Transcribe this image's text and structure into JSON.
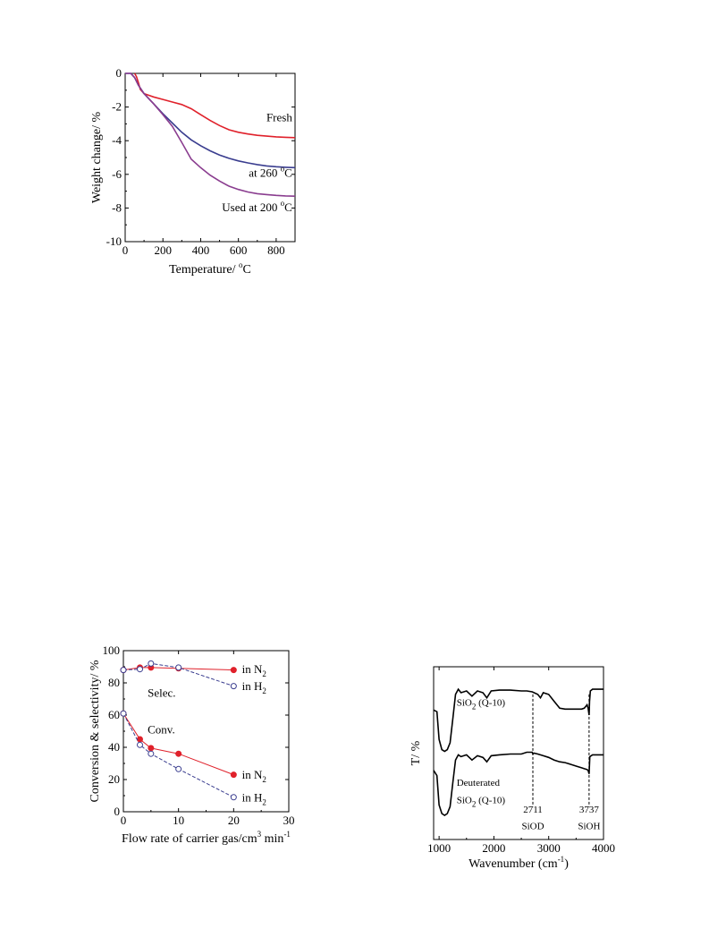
{
  "chart_data": [
    {
      "type": "line",
      "xlabel_main": "Temperature/ ",
      "xlabel_sup": "o",
      "xlabel_tail": "C",
      "ylabel": "Weight change/ %",
      "xlim": [
        0,
        900
      ],
      "ylim": [
        -10,
        0
      ],
      "xticks": [
        0,
        200,
        400,
        600,
        800
      ],
      "yticks": [
        0,
        -2,
        -4,
        -6,
        -8,
        -10
      ],
      "grid": false,
      "series": [
        {
          "color": "#e0212b",
          "x": [
            50,
            60,
            70,
            80,
            100,
            150,
            200,
            250,
            300,
            350,
            400,
            450,
            500,
            550,
            600,
            650,
            700,
            750,
            800,
            850,
            900
          ],
          "y": [
            0,
            -0.2,
            -0.55,
            -0.95,
            -1.2,
            -1.4,
            -1.55,
            -1.7,
            -1.85,
            -2.1,
            -2.45,
            -2.8,
            -3.1,
            -3.35,
            -3.5,
            -3.6,
            -3.68,
            -3.73,
            -3.77,
            -3.8,
            -3.82
          ]
        },
        {
          "color": "#3a3d8f",
          "x": [
            0,
            30,
            50,
            70,
            100,
            150,
            200,
            250,
            300,
            350,
            400,
            450,
            500,
            550,
            600,
            650,
            700,
            750,
            800,
            850,
            900
          ],
          "y": [
            0,
            0,
            -0.25,
            -0.7,
            -1.2,
            -1.8,
            -2.4,
            -2.95,
            -3.5,
            -3.95,
            -4.3,
            -4.6,
            -4.85,
            -5.05,
            -5.2,
            -5.32,
            -5.42,
            -5.5,
            -5.55,
            -5.58,
            -5.6
          ]
        },
        {
          "color": "#8a3d8f",
          "x": [
            0,
            30,
            50,
            70,
            100,
            150,
            200,
            250,
            300,
            350,
            400,
            450,
            500,
            550,
            600,
            650,
            700,
            750,
            800,
            850,
            900
          ],
          "y": [
            0,
            0,
            -0.25,
            -0.7,
            -1.2,
            -1.8,
            -2.45,
            -3.15,
            -4.1,
            -5.1,
            -5.6,
            -6.05,
            -6.4,
            -6.7,
            -6.9,
            -7.05,
            -7.15,
            -7.2,
            -7.25,
            -7.28,
            -7.3
          ]
        }
      ],
      "annotations": [
        {
          "text": "Fresh",
          "x": 885,
          "y": -2.85,
          "anchor": "end",
          "color": "#000000"
        },
        {
          "text": "at 260 ",
          "sup": "o",
          "tail": "C",
          "x": 885,
          "y": -6.15,
          "anchor": "end",
          "color": "#3a3d8f"
        },
        {
          "text": "Used at 200 ",
          "sup": "o",
          "tail": "C",
          "x": 885,
          "y": -8.2,
          "anchor": "end",
          "color": "#8a3d8f"
        }
      ]
    },
    {
      "type": "line",
      "xlabel_main": "Flow rate of carrier gas/cm",
      "xlabel_sup": "3",
      "xlabel_tail": " min",
      "xlabel_sup2": "-1",
      "ylabel": "Conversion & selectivity/ %",
      "xlim": [
        0,
        30
      ],
      "ylim": [
        0,
        100
      ],
      "xticks": [
        0,
        10,
        20,
        30
      ],
      "yticks": [
        0,
        20,
        40,
        60,
        80,
        100
      ],
      "grid": false,
      "series": [
        {
          "color": "#e0212b",
          "style": "filled",
          "dash": false,
          "x": [
            0,
            3,
            5,
            10,
            20
          ],
          "y": [
            88,
            89.5,
            89.5,
            89,
            88
          ]
        },
        {
          "color": "#3a3d8f",
          "style": "open",
          "dash": true,
          "x": [
            0,
            3,
            5,
            10,
            20
          ],
          "y": [
            88,
            88.5,
            92,
            89.5,
            78
          ]
        },
        {
          "color": "#e0212b",
          "style": "filled",
          "dash": false,
          "x": [
            0,
            3,
            5,
            10,
            20
          ],
          "y": [
            61,
            45,
            39.5,
            36,
            23
          ]
        },
        {
          "color": "#3a3d8f",
          "style": "open",
          "dash": true,
          "x": [
            0,
            3,
            5,
            10,
            20
          ],
          "y": [
            61,
            41.5,
            36,
            26.5,
            9
          ]
        }
      ],
      "annotations": [
        {
          "text": "Selec.",
          "x": 4.4,
          "y": 71.5,
          "anchor": "start",
          "color": "#000000"
        },
        {
          "text": "Conv.",
          "x": 4.4,
          "y": 48.5,
          "anchor": "start",
          "color": "#000000"
        },
        {
          "text": "in N",
          "sub": "2",
          "x": 21.5,
          "y": 86,
          "anchor": "start",
          "color": "#e0212b"
        },
        {
          "text": "in H",
          "sub": "2",
          "x": 21.5,
          "y": 75.5,
          "anchor": "start",
          "color": "#3a3d8f"
        },
        {
          "text": "in N",
          "sub": "2",
          "x": 21.5,
          "y": 20.5,
          "anchor": "start",
          "color": "#e0212b"
        },
        {
          "text": "in H",
          "sub": "2",
          "x": 21.5,
          "y": 6.5,
          "anchor": "start",
          "color": "#3a3d8f"
        }
      ]
    },
    {
      "type": "line",
      "xlabel_main": "Wavenumber (cm",
      "xlabel_sup": "-1",
      "xlabel_tail": ")",
      "ylabel": "T/ %",
      "xlim": [
        900,
        4000
      ],
      "xticks": [
        1000,
        2000,
        3000,
        4000
      ],
      "ylim": [
        0,
        100
      ],
      "grid": false,
      "series": [
        {
          "color": "#000000",
          "x": [
            900,
            960,
            1000,
            1050,
            1100,
            1150,
            1200,
            1250,
            1300,
            1350,
            1400,
            1500,
            1600,
            1700,
            1800,
            1870,
            1950,
            2100,
            2300,
            2500,
            2600,
            2700,
            2800,
            2850,
            2900,
            3000,
            3100,
            3200,
            3300,
            3400,
            3500,
            3600,
            3650,
            3700,
            3720,
            3737,
            3745,
            3760,
            3800,
            3850,
            4000
          ],
          "y": [
            75,
            74,
            58,
            52,
            51,
            52,
            56,
            70,
            84,
            87,
            85,
            86,
            83,
            86,
            85,
            82,
            86,
            86.5,
            86.5,
            86,
            86,
            85.5,
            84,
            82,
            85,
            84,
            80,
            76,
            75.5,
            75.5,
            75.5,
            75.5,
            76,
            78,
            76,
            72,
            80,
            86,
            87,
            87,
            87
          ]
        },
        {
          "color": "#000000",
          "x": [
            900,
            960,
            1000,
            1050,
            1100,
            1150,
            1200,
            1250,
            1300,
            1350,
            1400,
            1500,
            1600,
            1700,
            1800,
            1870,
            1950,
            2100,
            2300,
            2500,
            2600,
            2700,
            2711,
            2730,
            2800,
            2900,
            3000,
            3100,
            3200,
            3300,
            3400,
            3500,
            3600,
            3650,
            3700,
            3720,
            3737,
            3750,
            3800,
            3850,
            4000
          ],
          "y": [
            40,
            37,
            20,
            15,
            14,
            15,
            19,
            33,
            46,
            49,
            48,
            49,
            46,
            48.5,
            47.5,
            45,
            48.5,
            49,
            49.5,
            49.5,
            50.5,
            50.5,
            49.5,
            50,
            49.5,
            48.5,
            47.5,
            46,
            45,
            44.5,
            43.5,
            42.5,
            41.5,
            41,
            40.5,
            40,
            38,
            48,
            49,
            49,
            49
          ]
        }
      ],
      "vlines": [
        2711,
        3737
      ],
      "annotations": [
        {
          "text": "SiO",
          "sub": "2",
          "tail": " (Q-10)",
          "x": 1320,
          "y": 77.5,
          "anchor": "start",
          "color": "#000000"
        },
        {
          "text": "Deuterated",
          "x": 1320,
          "y": 31,
          "anchor": "start",
          "color": "#000000"
        },
        {
          "text": "SiO",
          "sub": "2",
          "tail": " (Q-10)",
          "x": 1320,
          "y": 21,
          "anchor": "start",
          "color": "#000000"
        },
        {
          "text": "2711",
          "x": 2711,
          "y": 15.5,
          "anchor": "middle",
          "color": "#000000"
        },
        {
          "text": "SiOD",
          "x": 2711,
          "y": 6,
          "anchor": "middle",
          "color": "#000000"
        },
        {
          "text": "3737",
          "x": 3737,
          "y": 15.5,
          "anchor": "middle",
          "color": "#000000"
        },
        {
          "text": "SiOH",
          "x": 3737,
          "y": 6,
          "anchor": "middle",
          "color": "#000000"
        }
      ]
    }
  ]
}
